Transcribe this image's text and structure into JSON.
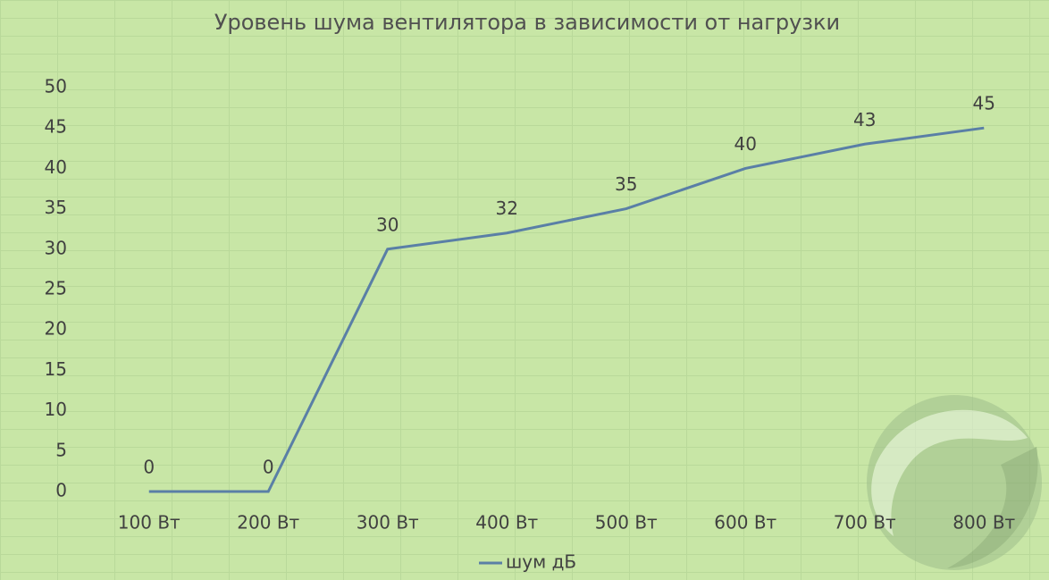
{
  "chart_data": {
    "type": "line",
    "title": "Уровень шума вентилятора в зависимости от нагрузки",
    "categories": [
      "100 Вт",
      "200 Вт",
      "300 Вт",
      "400 Вт",
      "500 Вт",
      "600 Вт",
      "700 Вт",
      "800 Вт"
    ],
    "series": [
      {
        "name": "шум дБ",
        "color": "#5a7fa6",
        "values": [
          0,
          0,
          30,
          32,
          35,
          40,
          43,
          45
        ]
      }
    ],
    "ylim": [
      0,
      50
    ],
    "yticks": [
      0,
      5,
      10,
      15,
      20,
      25,
      30,
      35,
      40,
      45,
      50
    ],
    "grid": false,
    "legend": "bottom",
    "data_labels": true
  }
}
